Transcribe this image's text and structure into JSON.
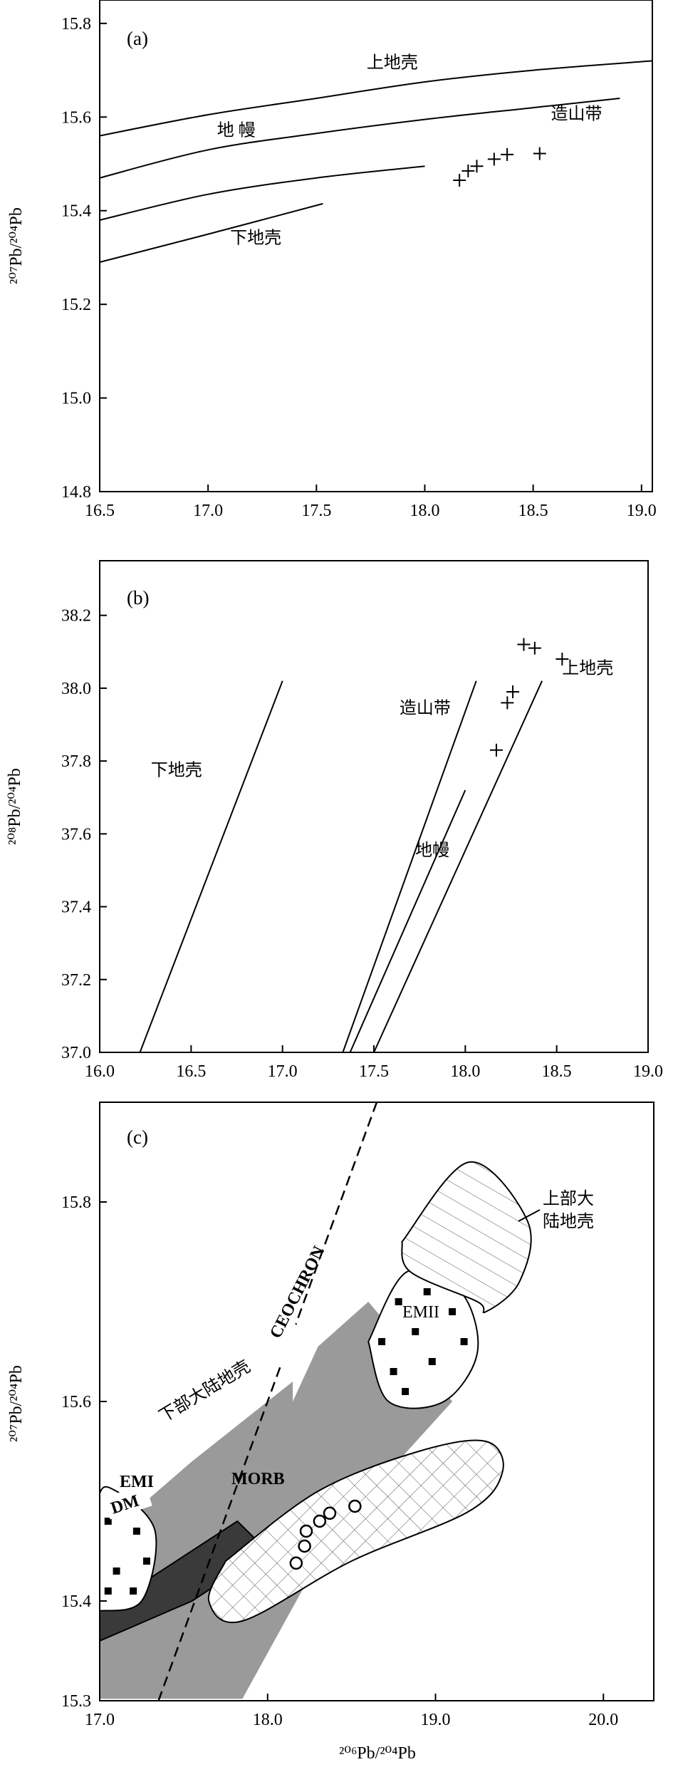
{
  "chart_data": [
    {
      "type": "line",
      "panel_label": "(a)",
      "ylabel": "²⁰⁷Pb/²⁰⁴Pb",
      "xlabel": "",
      "xlim": [
        16.5,
        19.05
      ],
      "ylim": [
        14.8,
        15.85
      ],
      "x_ticks": [
        "16.5",
        "17.0",
        "17.5",
        "18.0",
        "18.5",
        "19.0"
      ],
      "y_ticks": [
        "14.8",
        "15.0",
        "15.2",
        "15.4",
        "15.6",
        "15.8"
      ],
      "curves": [
        {
          "label": "上地壳",
          "points": [
            [
              16.5,
              15.56
            ],
            [
              17.0,
              15.605
            ],
            [
              17.5,
              15.64
            ],
            [
              18.0,
              15.675
            ],
            [
              18.5,
              15.7
            ],
            [
              19.05,
              15.72
            ]
          ]
        },
        {
          "label": "地幔",
          "points": [
            [
              16.5,
              15.47
            ],
            [
              17.0,
              15.53
            ],
            [
              17.5,
              15.565
            ],
            [
              18.0,
              15.595
            ],
            [
              18.5,
              15.62
            ],
            [
              18.9,
              15.64
            ]
          ]
        },
        {
          "label": "",
          "points": [
            [
              16.5,
              15.38
            ],
            [
              17.0,
              15.435
            ],
            [
              17.5,
              15.47
            ],
            [
              18.0,
              15.495
            ]
          ]
        },
        {
          "label": "下地壳",
          "points": [
            [
              16.5,
              15.29
            ],
            [
              17.0,
              15.35
            ],
            [
              17.53,
              15.415
            ]
          ]
        }
      ],
      "curve_labels": [
        {
          "text": "上地壳",
          "x": 17.85,
          "y": 15.705
        },
        {
          "text": "地 幔",
          "x": 17.13,
          "y": 15.56
        },
        {
          "text": "造山带",
          "x": 18.7,
          "y": 15.595
        },
        {
          "text": "下地壳",
          "x": 17.22,
          "y": 15.33
        }
      ],
      "points": [
        [
          18.16,
          15.465
        ],
        [
          18.2,
          15.485
        ],
        [
          18.24,
          15.495
        ],
        [
          18.32,
          15.51
        ],
        [
          18.38,
          15.52
        ],
        [
          18.53,
          15.522
        ]
      ]
    },
    {
      "type": "line",
      "panel_label": "(b)",
      "ylabel": "²⁰⁸Pb/²⁰⁴Pb",
      "xlabel": "",
      "xlim": [
        16.0,
        19.0
      ],
      "ylim": [
        37.0,
        38.35
      ],
      "x_ticks": [
        "16.0",
        "16.5",
        "17.0",
        "17.5",
        "18.0",
        "18.5",
        "19.0"
      ],
      "y_ticks": [
        "37.0",
        "37.2",
        "37.4",
        "37.6",
        "37.8",
        "38.0",
        "38.2"
      ],
      "curves": [
        {
          "label": "下地壳",
          "points": [
            [
              16.22,
              37.0
            ],
            [
              17.0,
              38.02
            ]
          ]
        },
        {
          "label": "造山带",
          "points": [
            [
              17.33,
              37.0
            ],
            [
              18.06,
              38.02
            ]
          ]
        },
        {
          "label": "地幔",
          "points": [
            [
              17.37,
              37.0
            ],
            [
              18.0,
              37.72
            ]
          ]
        },
        {
          "label": "上地壳",
          "points": [
            [
              17.5,
              37.0
            ],
            [
              18.42,
              38.02
            ]
          ]
        }
      ],
      "curve_labels": [
        {
          "text": "下地壳",
          "x": 16.42,
          "y": 37.76
        },
        {
          "text": "造山带",
          "x": 17.78,
          "y": 37.93
        },
        {
          "text": "上地壳",
          "x": 18.67,
          "y": 38.04
        },
        {
          "text": "地幔",
          "x": 17.82,
          "y": 37.54
        }
      ],
      "points": [
        [
          18.32,
          38.12
        ],
        [
          18.38,
          38.11
        ],
        [
          18.53,
          38.08
        ],
        [
          18.26,
          37.99
        ],
        [
          18.23,
          37.96
        ],
        [
          18.17,
          37.83
        ]
      ]
    },
    {
      "type": "scatter",
      "panel_label": "(c)",
      "ylabel": "²⁰⁷Pb/²⁰⁴Pb",
      "xlabel": "²⁰⁶Pb/²⁰⁴Pb",
      "xlim": [
        17.0,
        20.3
      ],
      "ylim": [
        15.3,
        15.9
      ],
      "x_ticks": [
        "17.0",
        "18.0",
        "19.0",
        "20.0"
      ],
      "y_ticks": [
        "15.3",
        "15.4",
        "15.6",
        "15.8"
      ],
      "fields": [
        {
          "label": "下部大陆地壳",
          "polygon": [
            [
              17.0,
              15.302
            ],
            [
              17.85,
              15.302
            ],
            [
              18.4,
              15.47
            ],
            [
              19.1,
              15.6
            ],
            [
              18.6,
              15.7
            ],
            [
              18.3,
              15.655
            ],
            [
              18.15,
              15.6
            ],
            [
              18.15,
              15.62
            ],
            [
              17.55,
              15.54
            ],
            [
              17.0,
              15.46
            ]
          ]
        },
        {
          "label": "DM",
          "polygon": [
            [
              17.0,
              15.36
            ],
            [
              17.55,
              15.4
            ],
            [
              18.0,
              15.45
            ],
            [
              17.82,
              15.48
            ],
            [
              17.0,
              15.39
            ]
          ]
        },
        {
          "label": "MORB",
          "polygon": [
            [
              17.75,
              15.44
            ],
            [
              18.3,
              15.51
            ],
            [
              18.9,
              15.55
            ],
            [
              19.3,
              15.56
            ],
            [
              19.4,
              15.53
            ],
            [
              19.2,
              15.49
            ],
            [
              18.5,
              15.44
            ],
            [
              17.85,
              15.38
            ],
            [
              17.65,
              15.4
            ]
          ]
        },
        {
          "label": "EMI",
          "polygon": [
            [
              16.99,
              15.39
            ],
            [
              17.25,
              15.4
            ],
            [
              17.33,
              15.47
            ],
            [
              17.1,
              15.51
            ],
            [
              16.99,
              15.5
            ]
          ]
        },
        {
          "label": "EMII",
          "polygon": [
            [
              18.6,
              15.66
            ],
            [
              18.83,
              15.73
            ],
            [
              19.15,
              15.71
            ],
            [
              19.25,
              15.65
            ],
            [
              19.05,
              15.6
            ],
            [
              18.72,
              15.6
            ]
          ]
        },
        {
          "label": "上部大陆地壳",
          "polygon": [
            [
              18.8,
              15.76
            ],
            [
              19.2,
              15.84
            ],
            [
              19.55,
              15.78
            ],
            [
              19.5,
              15.72
            ],
            [
              19.3,
              15.69
            ],
            [
              19.25,
              15.7
            ],
            [
              18.85,
              15.73
            ]
          ]
        }
      ],
      "geochron": {
        "label": "CEOCHRON",
        "points": [
          [
            17.35,
            15.3
          ],
          [
            18.65,
            15.9
          ]
        ]
      },
      "field_labels": {
        "lcc": "下部大陆地壳",
        "ucc": "上部大\n陆地壳",
        "dm": "DM",
        "emi": "EMI",
        "emii": "EMII",
        "morb": "MORB"
      },
      "points": [
        [
          18.17,
          15.438
        ],
        [
          18.22,
          15.455
        ],
        [
          18.23,
          15.47
        ],
        [
          18.31,
          15.48
        ],
        [
          18.37,
          15.488
        ],
        [
          18.52,
          15.495
        ]
      ]
    }
  ]
}
